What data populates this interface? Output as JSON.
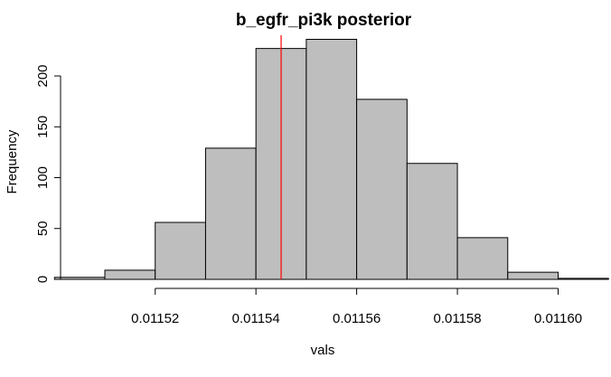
{
  "chart_data": {
    "type": "histogram",
    "title": "b_egfr_pi3k posterior",
    "xlabel": "vals",
    "ylabel": "Frequency",
    "bin_edges": [
      0.0115,
      0.01151,
      0.01152,
      0.01153,
      0.01154,
      0.01155,
      0.01156,
      0.01157,
      0.01158,
      0.01159,
      0.0116,
      0.01161
    ],
    "values": [
      2,
      9,
      56,
      129,
      227,
      236,
      177,
      114,
      41,
      7,
      1
    ],
    "x_ticks": [
      0.01152,
      0.01154,
      0.01156,
      0.01158,
      0.0116
    ],
    "x_tick_labels": [
      "0.01152",
      "0.01154",
      "0.01156",
      "0.01158",
      "0.01160"
    ],
    "y_ticks": [
      0,
      50,
      100,
      150,
      200
    ],
    "y_tick_labels": [
      "0",
      "50",
      "100",
      "150",
      "200"
    ],
    "xlim": [
      0.011503,
      0.0116035
    ],
    "ylim": [
      0,
      240
    ],
    "vline": {
      "x": 0.011545,
      "color": "#ff0000"
    },
    "bar_color": "#bebebe",
    "grid": false
  }
}
